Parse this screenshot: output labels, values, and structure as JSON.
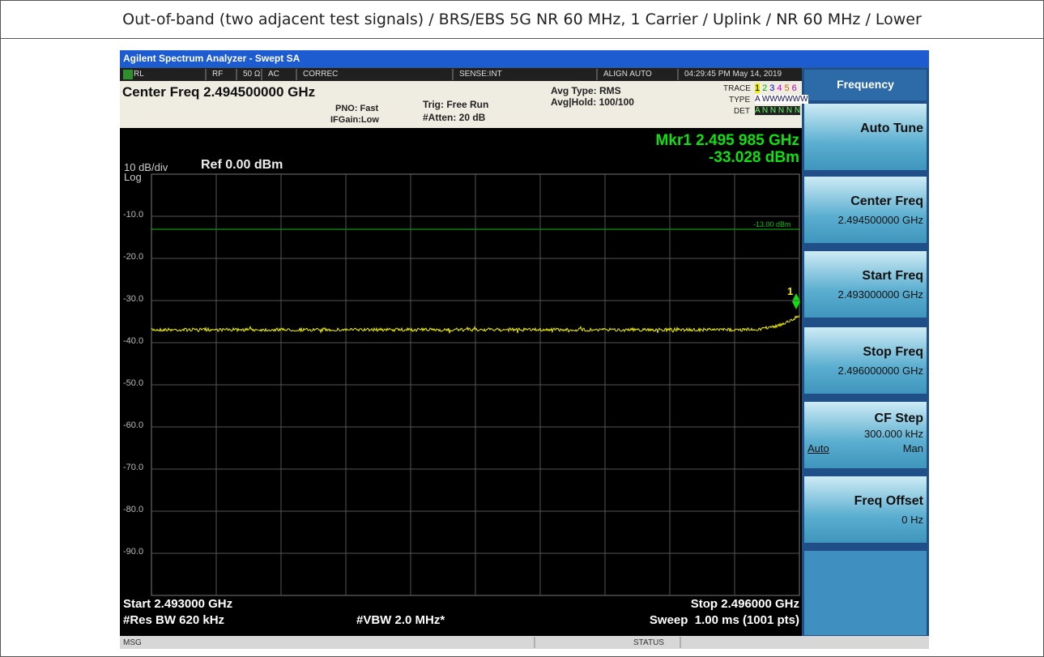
{
  "header": {
    "title": "Out-of-band (two adjacent test signals) / BRS/EBS 5G NR 60 MHz, 1 Carrier / Uplink / NR 60 MHz / Lower"
  },
  "window": {
    "title": "Agilent Spectrum Analyzer - Swept SA"
  },
  "status_bar": [
    "RL",
    "RF",
    "50 Ω",
    "AC",
    "CORREC",
    "SENSE:INT",
    "ALIGN AUTO",
    "04:29:45 PM May 14, 2019"
  ],
  "settings": {
    "center_freq": "Center Freq 2.494500000 GHz",
    "pno": "PNO: Fast",
    "ifgain": "IFGain:Low",
    "trig": "Trig: Free Run",
    "atten": "#Atten: 20 dB",
    "avg_type": "Avg Type: RMS",
    "avg_hold": "Avg|Hold: 100/100"
  },
  "trace_info": {
    "trace_label": "TRACE",
    "trace_numbers": [
      "1",
      "2",
      "3",
      "4",
      "5",
      "6"
    ],
    "type_label": "TYPE",
    "type_value": "A WWWWWW",
    "det_label": "DET",
    "det_value": "A N N N N N"
  },
  "display": {
    "marker": "Mkr1 2.495 985 GHz",
    "marker_level": "-33.028 dBm",
    "scale": "10 dB/div",
    "scale_type": "Log",
    "ref": "Ref 0.00 dBm",
    "y_labels": [
      "-10.0",
      "-20.0",
      "-30.0",
      "-40.0",
      "-50.0",
      "-60.0",
      "-70.0",
      "-80.0",
      "-90.0"
    ],
    "limit_label": "-13.00 dBm",
    "marker_id": "1"
  },
  "footer": {
    "start": "Start 2.493000 GHz",
    "res_bw": "#Res BW 620 kHz",
    "vbw": "#VBW 2.0 MHz*",
    "stop": "Stop 2.496000 GHz",
    "sweep": "Sweep  1.00 ms (1001 pts)"
  },
  "message_bar": {
    "msg": "MSG",
    "status": "STATUS"
  },
  "softkeys": {
    "menu": "Frequency",
    "keys": [
      {
        "label": "Auto Tune"
      },
      {
        "label": "Center Freq",
        "value": "2.494500000 GHz"
      },
      {
        "label": "Start Freq",
        "value": "2.493000000 GHz"
      },
      {
        "label": "Stop Freq",
        "value": "2.496000000 GHz"
      },
      {
        "label": "CF Step",
        "value": "300.000 kHz",
        "options": [
          "Auto",
          "Man"
        ]
      },
      {
        "label": "Freq Offset",
        "value": "0 Hz"
      }
    ]
  }
}
